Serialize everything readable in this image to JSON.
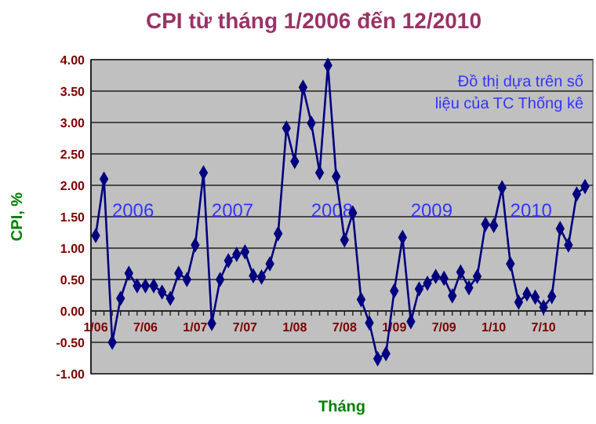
{
  "chart_data": {
    "type": "line",
    "title": "CPI từ tháng 1/2006 đến 12/2010",
    "xlabel": "Tháng",
    "ylabel": "CPI, %",
    "categories": [
      "1/06",
      null,
      null,
      null,
      null,
      null,
      "7/06",
      null,
      null,
      null,
      null,
      null,
      "1/07",
      null,
      null,
      null,
      null,
      null,
      "7/07",
      null,
      null,
      null,
      null,
      null,
      "1/08",
      null,
      null,
      null,
      null,
      null,
      "7/08",
      null,
      null,
      null,
      null,
      null,
      "1/09",
      null,
      null,
      null,
      null,
      null,
      "7/09",
      null,
      null,
      null,
      null,
      null,
      "1/10",
      null,
      null,
      null,
      null,
      null,
      "7/10",
      null,
      null,
      null,
      null,
      null
    ],
    "series": [
      {
        "color": "#000080",
        "values": [
          1.2,
          2.1,
          -0.5,
          0.2,
          0.6,
          0.4,
          0.4,
          0.4,
          0.3,
          0.2,
          0.6,
          0.5,
          1.05,
          2.2,
          -0.2,
          0.5,
          0.8,
          0.9,
          0.94,
          0.56,
          0.54,
          0.75,
          1.23,
          2.91,
          2.38,
          3.56,
          2.99,
          2.2,
          3.91,
          2.14,
          1.13,
          1.56,
          0.18,
          -0.19,
          -0.76,
          -0.68,
          0.32,
          1.17,
          -0.17,
          0.35,
          0.44,
          0.55,
          0.52,
          0.24,
          0.62,
          0.37,
          0.55,
          1.38,
          1.36,
          1.96,
          0.75,
          0.14,
          0.27,
          0.22,
          0.06,
          0.23,
          1.31,
          1.05,
          1.86,
          1.98
        ]
      }
    ],
    "ylim": [
      -1,
      4
    ],
    "yticks": [
      {
        "value": -1,
        "label": "-1.00"
      },
      {
        "value": -0.5,
        "label": "-0.50"
      },
      {
        "value": 0,
        "label": "0.00"
      },
      {
        "value": 0.5,
        "label": "0.50"
      },
      {
        "value": 1,
        "label": "1.00"
      },
      {
        "value": 1.5,
        "label": "1.50"
      },
      {
        "value": 2,
        "label": "2.00"
      },
      {
        "value": 2.5,
        "label": "2.50"
      },
      {
        "value": 3,
        "label": "3.00"
      },
      {
        "value": 3.5,
        "label": "3.50"
      },
      {
        "value": 4,
        "label": "4.00"
      }
    ],
    "grid": "y",
    "marker": "diamond",
    "annotations": [
      "Đồ thị dựa trên số liệu của TC Thống kê",
      "2006",
      "2007",
      "2008",
      "2009",
      "2010"
    ]
  }
}
